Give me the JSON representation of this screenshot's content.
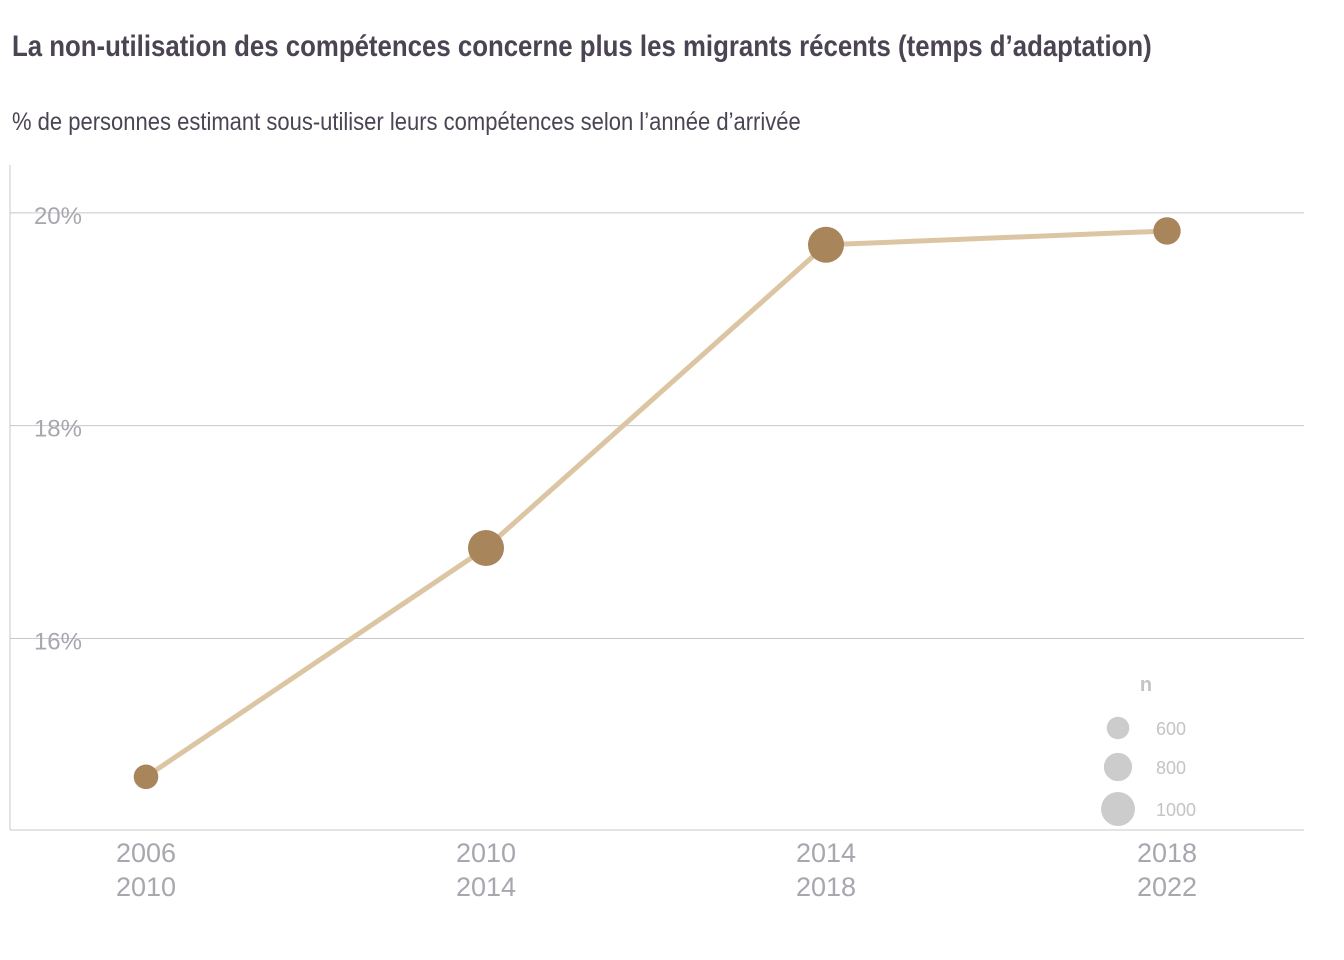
{
  "title": "La non-utilisation des compétences concerne plus les migrants récents (temps d’adaptation)",
  "subtitle": "% de personnes estimant sous-utiliser leurs compétences selon l’année d’arrivée",
  "colors": {
    "line": "#dcc5a3",
    "point": "#a8855a",
    "grid": "#c8c8cc",
    "axis_text": "#a8a6ae",
    "legend": "#cccccc",
    "title": "#4a4453"
  },
  "chart_data": {
    "type": "line",
    "categories": [
      [
        "2006",
        "2010"
      ],
      [
        "2010",
        "2014"
      ],
      [
        "2014",
        "2018"
      ],
      [
        "2018",
        "2022"
      ]
    ],
    "values": [
      14.7,
      16.85,
      19.7,
      19.83
    ],
    "sizes": [
      600,
      1000,
      1000,
      700
    ],
    "ylim": [
      14.2,
      20.45
    ],
    "yticks": [
      16,
      18,
      20
    ],
    "ytick_labels": [
      "16%",
      "18%",
      "20%"
    ],
    "grid": "horizontal",
    "size_legend": {
      "title": "n",
      "values": [
        600,
        800,
        1000
      ],
      "labels": [
        "600",
        "800",
        "1000"
      ],
      "placement": "bottom-right"
    }
  }
}
